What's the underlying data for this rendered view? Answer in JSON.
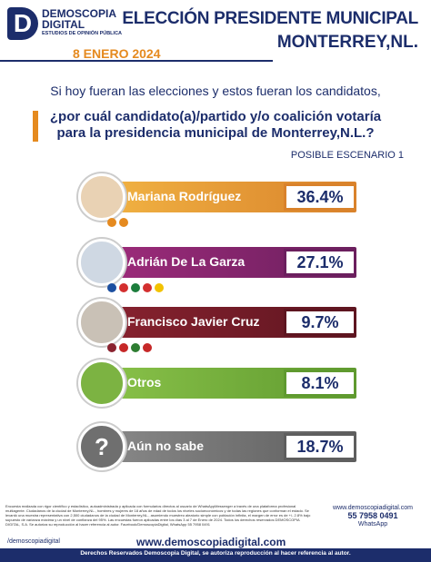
{
  "header": {
    "brand": "DEMOSCOPIA",
    "brand2": "DIGITAL",
    "tagline": "ESTUDIOS DE OPINIÓN PÚBLICA",
    "title_line1": "ELECCIÓN PRESIDENTE MUNICIPAL",
    "title_line2": "MONTERREY,NL.",
    "date": "8 ENERO 2024"
  },
  "question": {
    "intro": "Si hoy fueran las elecciones y estos fueran los candidatos,",
    "line1": "¿por cuál candidato(a)/partido y/o coalición votaría",
    "line2": "para la presidencia municipal de Monterrey,N.L.?",
    "scenario": "POSIBLE ESCENARIO 1"
  },
  "results": [
    {
      "name": "Mariana Rodríguez",
      "value": "36.4%"
    },
    {
      "name": "Adrián De La Garza",
      "value": "27.1%"
    },
    {
      "name": "Francisco Javier Cruz",
      "value": "9.7%"
    },
    {
      "name": "Otros",
      "value": "8.1%"
    },
    {
      "name": "Aún no sabe",
      "value": "18.7%"
    }
  ],
  "footer": {
    "methodology": "Encuesta realizada con rigor científico y estadístico, autoadministrada y aplicada con formularios directos al usuario de WhatsAppMessenger a través de una plataforma profesional multiagente. Ciudadanos de la ciudad de Monterrey,NL., hombres y mujeres de 18 años de edad de todos los niveles socioeconómicos y de todas las regiones que conforman el estado. Se levantó una muestra representativa con 2,500 ciudadanos de la ciudad de Monterrey,NL., asumiendo muestreo aleatorio simple con población infinita, el margen de error es de +/- 2.8% bajo supuesto de varianza máxima y un nivel de confianza del 95%. Las encuestas fueron aplicadas entre los días 3 al 7 de Enero de 2024. Todos los derechos reservados DEMOSCOPIA DIGITAL, S.A. Se autoriza su reproducción al hacer referencia al autor. Facebook/DemoscopiaDigital, WhatsApp 55 7958 0491",
    "social": "/demoscopiadigital",
    "website": "www.demoscopiadigital.com",
    "contact_web": "www.demoscopiadigital.com",
    "phone": "55 7958 0491",
    "whatsapp": "WhatsApp",
    "rights": "Derechos Reservados Demoscopia Digital, se autoriza reproducción al hacer referencia al autor."
  }
}
